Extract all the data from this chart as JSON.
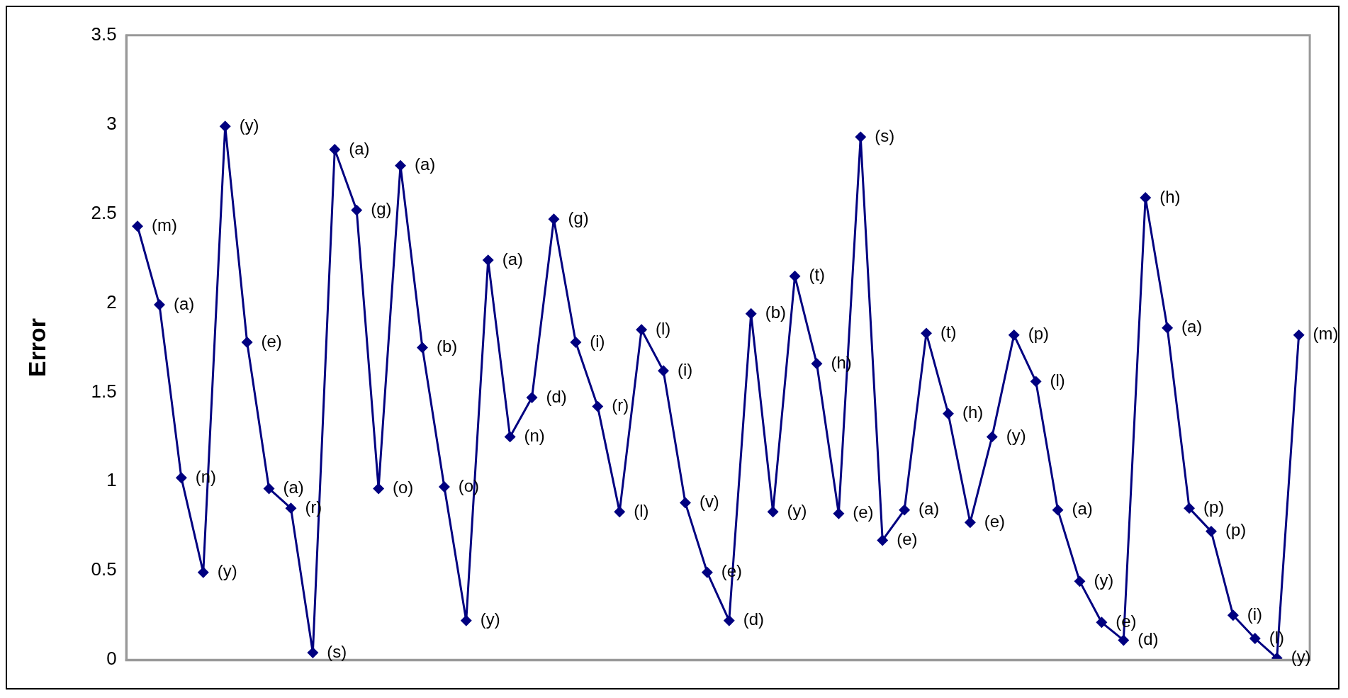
{
  "chart_data": {
    "type": "line",
    "ylabel": "Error",
    "color": "#000080",
    "marker": "diamond",
    "ylim": [
      0,
      3.5
    ],
    "yticks": [
      0,
      0.5,
      1,
      1.5,
      2,
      2.5,
      3,
      3.5
    ],
    "categories": [
      null,
      null,
      null,
      null,
      null,
      null,
      null,
      null,
      null,
      null,
      null,
      null,
      null,
      null,
      null,
      null,
      null,
      null,
      null,
      null,
      null,
      null,
      null,
      null,
      null,
      null,
      null,
      null,
      null,
      null,
      null,
      null,
      null,
      null,
      null,
      null,
      null,
      null,
      null,
      null,
      null,
      null,
      null,
      null,
      null,
      null,
      null,
      null,
      null,
      null,
      null,
      null,
      null,
      null
    ],
    "values": [
      2.43,
      1.99,
      1.02,
      0.49,
      2.99,
      1.78,
      0.96,
      0.85,
      0.04,
      2.86,
      2.52,
      0.96,
      2.77,
      1.75,
      0.97,
      0.22,
      2.24,
      1.25,
      1.47,
      2.47,
      1.78,
      1.42,
      0.83,
      1.85,
      1.62,
      0.88,
      0.49,
      0.22,
      1.94,
      0.83,
      2.15,
      1.66,
      0.82,
      2.93,
      0.67,
      0.84,
      1.83,
      1.38,
      0.77,
      1.25,
      1.82,
      1.56,
      0.84,
      0.44,
      0.21,
      0.11,
      2.59,
      1.86,
      0.85,
      0.72,
      0.25,
      0.12,
      0.01,
      1.82
    ],
    "value_labels": [
      "(m)",
      "(a)",
      "(n)",
      "(y)",
      "(y)",
      "(e)",
      "(a)",
      "(r)",
      "(s)",
      "(a)",
      "(g)",
      "(o)",
      "(a)",
      "(b)",
      "(o)",
      "(y)",
      "(a)",
      "(n)",
      "(d)",
      "(g)",
      "(i)",
      "(r)",
      "(l)",
      "(l)",
      "(i)",
      "(v)",
      "(e)",
      "(d)",
      "(b)",
      "(y)",
      "(t)",
      "(h)",
      "(e)",
      "(s)",
      "(e)",
      "(a)",
      "(t)",
      "(h)",
      "(e)",
      "(y)",
      "(p)",
      "(l)",
      "(a)",
      "(y)",
      "(e)",
      "(d)",
      "(h)",
      "(a)",
      "(p)",
      "(p)",
      "(i)",
      "(l)",
      "(y)",
      "(m)"
    ]
  }
}
